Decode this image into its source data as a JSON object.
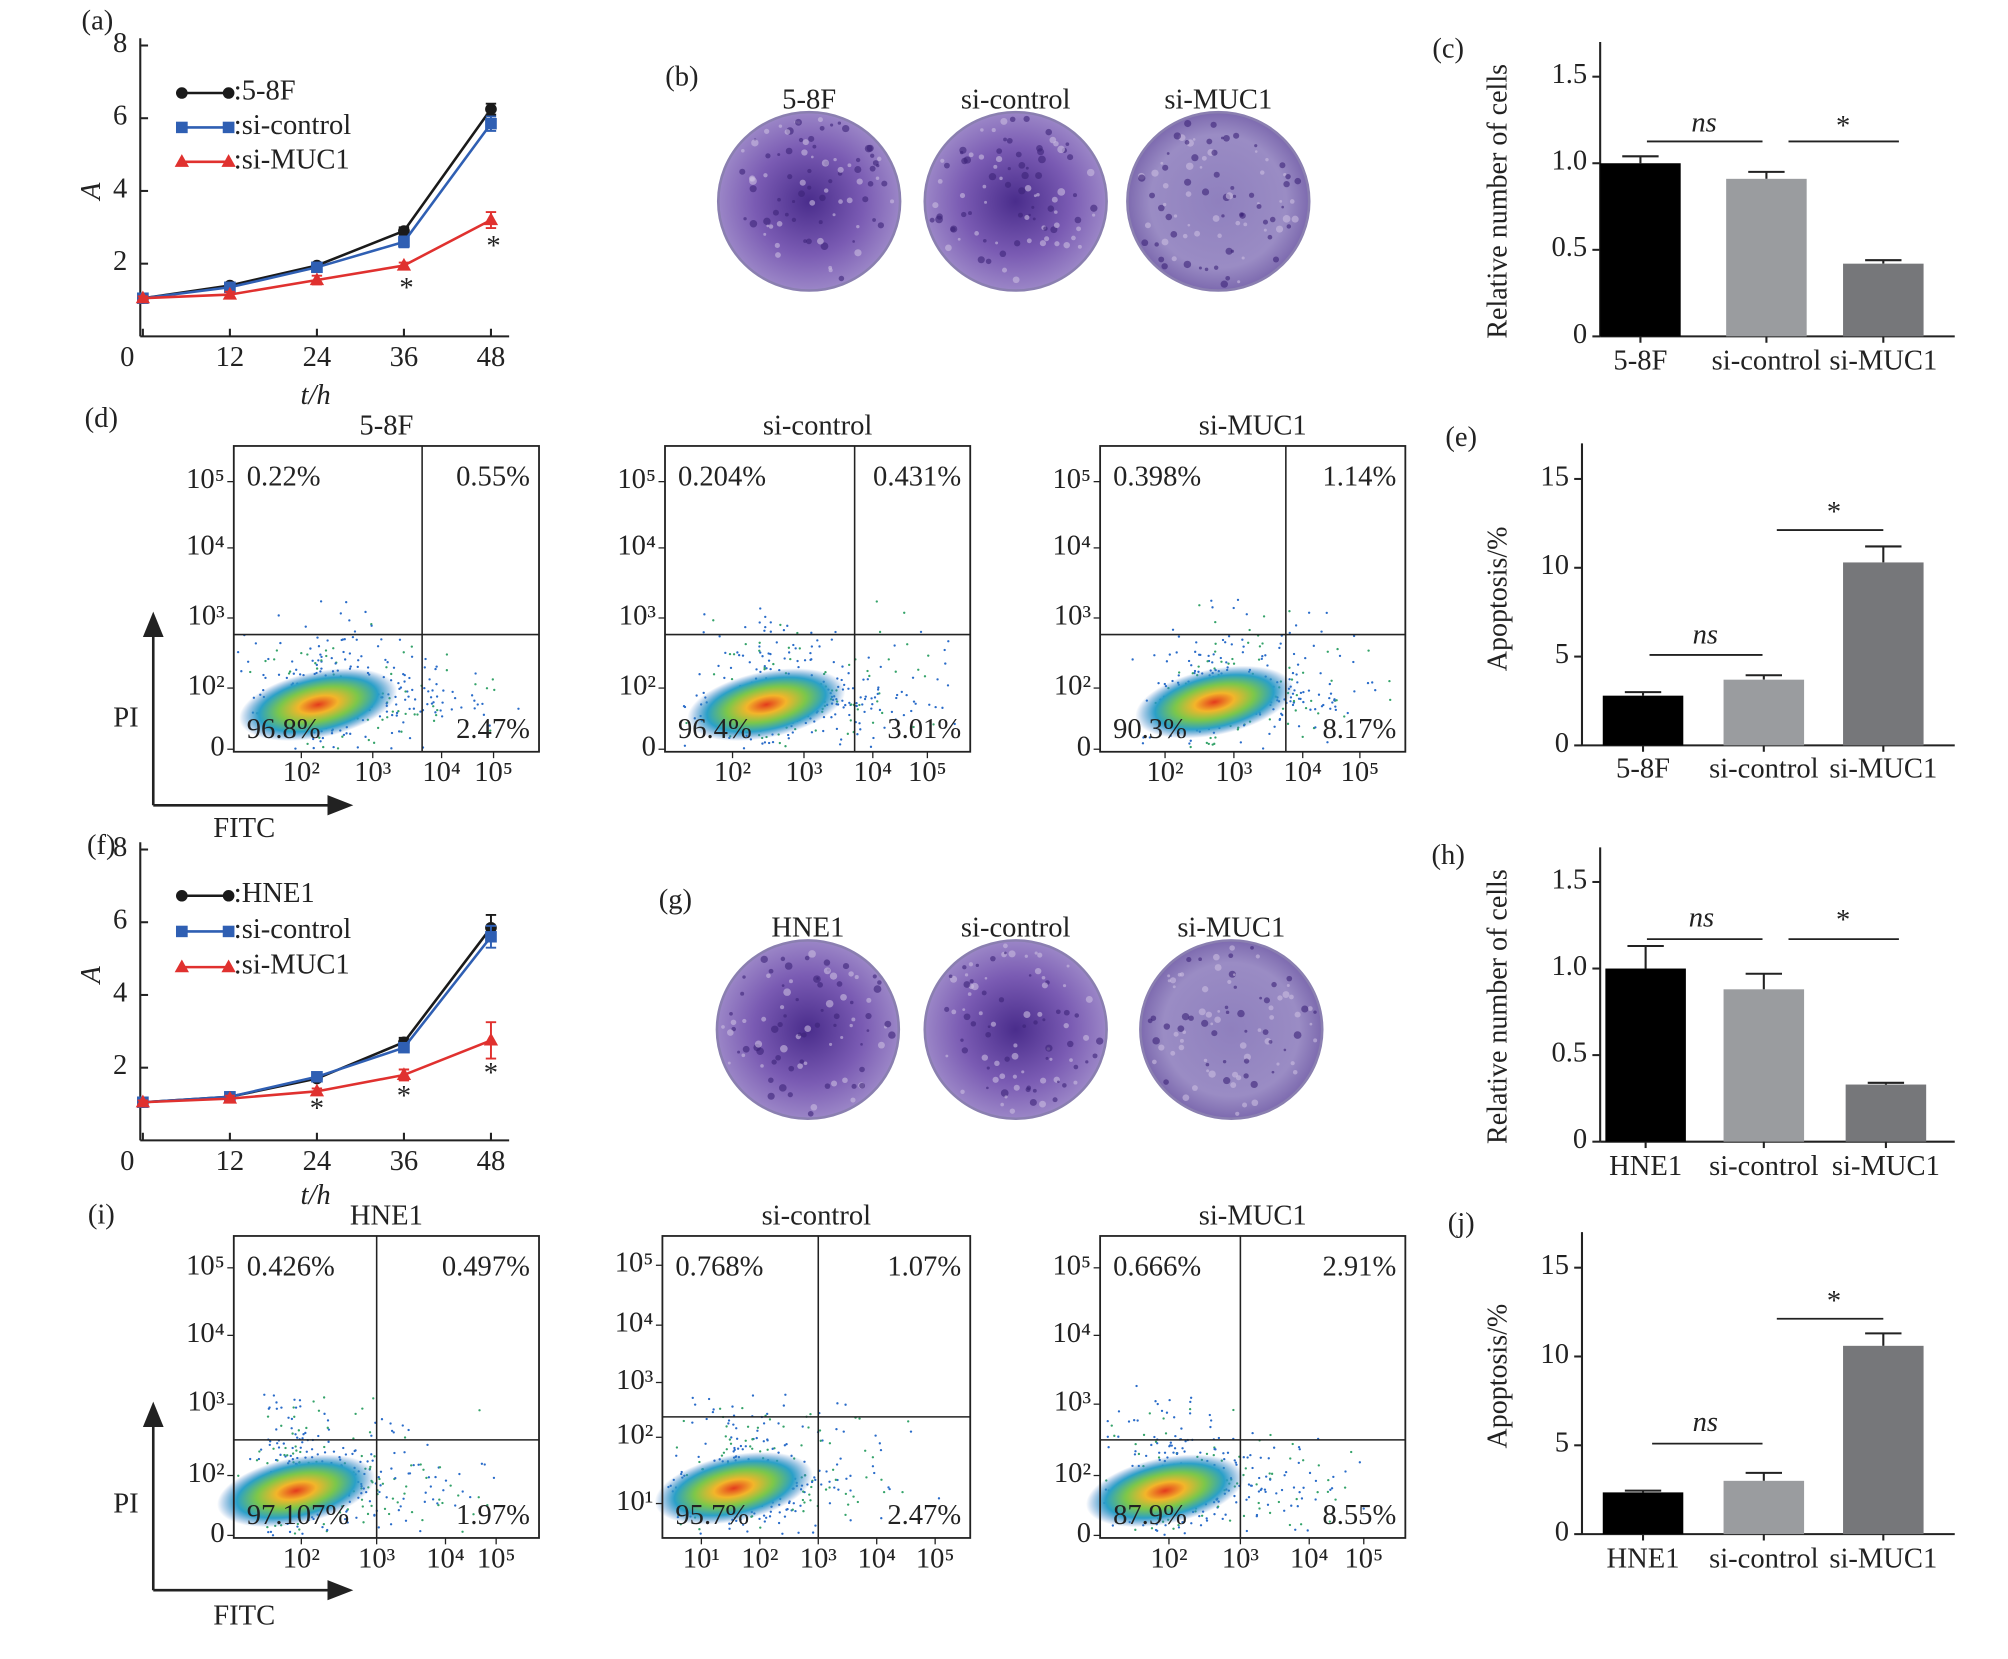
{
  "chart_data": [
    {
      "type": "line",
      "panel": "(a)",
      "xlabel": "t/h",
      "ylabel": "A",
      "x": [
        0,
        12,
        24,
        36,
        48
      ],
      "xlim": [
        0,
        50
      ],
      "xticks": [
        0,
        12,
        24,
        36,
        48
      ],
      "ylim": [
        0,
        8.2
      ],
      "yticks": [
        0,
        2,
        4,
        6,
        8
      ],
      "series": [
        {
          "name": ":5-8F",
          "color": "#1a1a1a",
          "marker": "circle",
          "values": [
            1.05,
            1.4,
            1.95,
            2.9,
            6.25
          ],
          "errors": [
            0.05,
            0.08,
            0.08,
            0.1,
            0.15
          ]
        },
        {
          "name": ":si-control",
          "color": "#2f5fb3",
          "marker": "square",
          "values": [
            1.05,
            1.35,
            1.9,
            2.6,
            5.85
          ],
          "errors": [
            0.05,
            0.08,
            0.08,
            0.15,
            0.2
          ]
        },
        {
          "name": ":si-MUC1",
          "color": "#e0312f",
          "marker": "triangle",
          "values": [
            1.05,
            1.15,
            1.55,
            1.95,
            3.2
          ],
          "errors": [
            0.05,
            0.08,
            0.12,
            0.08,
            0.22
          ]
        }
      ],
      "annotations": [
        "*",
        "*"
      ]
    },
    {
      "type": "image",
      "panel": "(b)",
      "categories": [
        "5-8F",
        "si-control",
        "si-MUC1"
      ]
    },
    {
      "type": "bar",
      "panel": "(c)",
      "ylabel": "Relative number of cells",
      "categories": [
        "5-8F",
        "si-control",
        "si-MUC1"
      ],
      "values": [
        1.0,
        0.91,
        0.42
      ],
      "errors": [
        0.04,
        0.04,
        0.02
      ],
      "colors": [
        "#000000",
        "#9a9c9f",
        "#76777a"
      ],
      "ylim": [
        0,
        1.7
      ],
      "yticks": [
        0,
        0.5,
        {
          "value": 1,
          "label": "1.0"
        },
        1.5
      ],
      "annotations": [
        "ns",
        "*"
      ]
    },
    {
      "type": "scatter",
      "panel": "(d)",
      "xlabel": "FITC",
      "ylabel": "PI",
      "plots": [
        {
          "title": "5-8F",
          "quadrants": [
            "0.22%",
            "0.55%",
            "96.8%",
            "2.47%"
          ],
          "xticks": [
            "10²",
            "10³",
            "10⁴",
            "10⁵"
          ],
          "yticks": [
            "10⁵",
            "10⁴",
            "10³",
            "10²",
            "0"
          ]
        },
        {
          "title": "si-control",
          "quadrants": [
            "0.204%",
            "0.431%",
            "96.4%",
            "3.01%"
          ],
          "xticks": [
            "10²",
            "10³",
            "10⁴",
            "10⁵"
          ],
          "yticks": [
            "10⁵",
            "10⁴",
            "10³",
            "10²",
            "0"
          ]
        },
        {
          "title": "si-MUC1",
          "quadrants": [
            "0.398%",
            "1.14%",
            "90.3%",
            "8.17%"
          ],
          "xticks": [
            "10²",
            "10³",
            "10⁴",
            "10⁵"
          ],
          "yticks": [
            "10⁵",
            "10⁴",
            "10³",
            "10²",
            "0"
          ]
        }
      ]
    },
    {
      "type": "bar",
      "panel": "(e)",
      "ylabel": "Apoptosis/%",
      "categories": [
        "5-8F",
        "si-control",
        "si-MUC1"
      ],
      "values": [
        2.8,
        3.7,
        10.3
      ],
      "errors": [
        0.2,
        0.25,
        0.9
      ],
      "colors": [
        "#000000",
        "#9a9c9f",
        "#76777a"
      ],
      "ylim": [
        0,
        17
      ],
      "yticks": [
        0,
        5,
        10,
        15
      ],
      "annotations": [
        "ns",
        "*"
      ]
    },
    {
      "type": "line",
      "panel": "(f)",
      "xlabel": "t/h",
      "ylabel": "A",
      "x": [
        0,
        12,
        24,
        36,
        48
      ],
      "xlim": [
        0,
        50
      ],
      "xticks": [
        0,
        12,
        24,
        36,
        48
      ],
      "ylim": [
        0,
        8.2
      ],
      "yticks": [
        0,
        2,
        4,
        6,
        8
      ],
      "series": [
        {
          "name": ":HNE1",
          "color": "#1a1a1a",
          "marker": "circle",
          "values": [
            1.05,
            1.2,
            1.7,
            2.7,
            5.85
          ],
          "errors": [
            0.05,
            0.08,
            0.08,
            0.12,
            0.35
          ]
        },
        {
          "name": ":si-control",
          "color": "#2f5fb3",
          "marker": "square",
          "values": [
            1.05,
            1.2,
            1.75,
            2.55,
            5.6
          ],
          "errors": [
            0.05,
            0.08,
            0.08,
            0.12,
            0.3
          ]
        },
        {
          "name": ":si-MUC1",
          "color": "#e0312f",
          "marker": "triangle",
          "values": [
            1.05,
            1.15,
            1.35,
            1.8,
            2.75
          ],
          "errors": [
            0.05,
            0.08,
            0.08,
            0.15,
            0.5
          ]
        }
      ],
      "annotations": [
        "*",
        "*",
        "*"
      ]
    },
    {
      "type": "image",
      "panel": "(g)",
      "categories": [
        "HNE1",
        "si-control",
        "si-MUC1"
      ]
    },
    {
      "type": "bar",
      "panel": "(h)",
      "ylabel": "Relative number of cells",
      "categories": [
        "HNE1",
        "si-control",
        "si-MUC1"
      ],
      "values": [
        1.0,
        0.88,
        0.33
      ],
      "errors": [
        0.13,
        0.09,
        0.01
      ],
      "colors": [
        "#000000",
        "#9a9c9f",
        "#76777a"
      ],
      "ylim": [
        0,
        1.7
      ],
      "yticks": [
        0,
        0.5,
        {
          "value": 1,
          "label": "1.0"
        },
        1.5
      ],
      "annotations": [
        "ns",
        "*"
      ]
    },
    {
      "type": "scatter",
      "panel": "(i)",
      "xlabel": "FITC",
      "ylabel": "PI",
      "plots": [
        {
          "title": "HNE1",
          "quadrants": [
            "0.426%",
            "0.497%",
            "97.107%",
            "1.97%"
          ],
          "xticks": [
            "10²",
            "10³",
            "10⁴",
            "10⁵"
          ],
          "yticks": [
            "10⁵",
            "10⁴",
            "10³",
            "10²",
            "0"
          ]
        },
        {
          "title": "si-control",
          "quadrants": [
            "0.768%",
            "1.07%",
            "95.7%",
            "2.47%"
          ],
          "xticks": [
            "10¹",
            "10²",
            "10³",
            "10⁴",
            "10⁵"
          ],
          "yticks": [
            "10⁵",
            "10⁴",
            "10³",
            "10²",
            "10¹"
          ]
        },
        {
          "title": "si-MUC1",
          "quadrants": [
            "0.666%",
            "2.91%",
            "87.9%",
            "8.55%"
          ],
          "xticks": [
            "10²",
            "10³",
            "10⁴",
            "10⁵"
          ],
          "yticks": [
            "10⁵",
            "10⁴",
            "10³",
            "10²",
            "0"
          ]
        }
      ]
    },
    {
      "type": "bar",
      "panel": "(j)",
      "ylabel": "Apoptosis/%",
      "categories": [
        "HNE1",
        "si-control",
        "si-MUC1"
      ],
      "values": [
        2.35,
        3.0,
        10.6
      ],
      "errors": [
        0.1,
        0.45,
        0.7
      ],
      "colors": [
        "#000000",
        "#9a9c9f",
        "#76777a"
      ],
      "ylim": [
        0,
        17
      ],
      "yticks": [
        0,
        5,
        10,
        15
      ],
      "annotations": [
        "ns",
        "*"
      ]
    }
  ]
}
